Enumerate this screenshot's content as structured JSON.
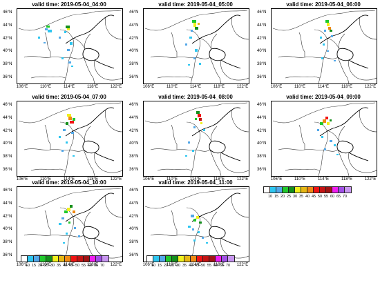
{
  "panels": [
    {
      "title": "valid time: 2019-05-04_04:00"
    },
    {
      "title": "valid time: 2019-05-04_05:00"
    },
    {
      "title": "valid time: 2019-05-04_06:00"
    },
    {
      "title": "valid time: 2019-05-04_07:00"
    },
    {
      "title": "valid time: 2019-05-04_08:00"
    },
    {
      "title": "valid time: 2019-05-04_09:00"
    },
    {
      "title": "valid time: 2019-05-04_10:00"
    },
    {
      "title": "valid time: 2019-05-04_11:00"
    }
  ],
  "lat_labels": [
    "46°N",
    "44°N",
    "42°N",
    "40°N",
    "38°N",
    "36°N"
  ],
  "lon_labels": [
    "106°E",
    "110°E",
    "114°E",
    "118°E",
    "122°E"
  ],
  "colorbar": {
    "labels": [
      "10",
      "15",
      "20",
      "25",
      "30",
      "35",
      "40",
      "45",
      "50",
      "55",
      "60",
      "65",
      "70"
    ],
    "colors": [
      "#ffffff",
      "#2ec6f0",
      "#52a7e8",
      "#21c92d",
      "#148f1c",
      "#f0f01e",
      "#e6b714",
      "#f08a14",
      "#f01414",
      "#c41414",
      "#a01414",
      "#f01ef0",
      "#a050e6",
      "#c896f0"
    ]
  }
}
